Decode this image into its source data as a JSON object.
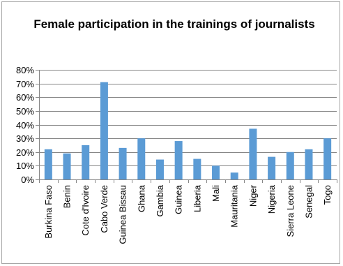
{
  "chart_data": {
    "type": "bar",
    "title": "Female participation in the trainings of journalists",
    "categories": [
      "Burkina Faso",
      "Benin",
      "Cote d'Ivoire",
      "Cabo Verde",
      "Guinea Bissau",
      "Ghana",
      "Gambia",
      "Guinea",
      "Liberia",
      "Mali",
      "Mauritania",
      "Niger",
      "Nigeria",
      "Sierra Leone",
      "Senegal",
      "Togo"
    ],
    "series": [
      {
        "values": [
          0.22,
          0.19,
          0.25,
          0.71,
          0.23,
          0.3,
          0.145,
          0.28,
          0.15,
          0.1,
          0.05,
          0.37,
          0.165,
          0.2,
          0.22,
          0.3
        ]
      }
    ],
    "ylim": [
      0,
      0.8
    ],
    "yticks": [
      0,
      0.1,
      0.2,
      0.3,
      0.4,
      0.5,
      0.6,
      0.7,
      0.8
    ],
    "ytick_labels": [
      "0%",
      "10%",
      "20%",
      "30%",
      "40%",
      "50%",
      "60%",
      "70%",
      "80%"
    ],
    "grid": true,
    "legend": "none",
    "bar_color": "#5b9bd5"
  }
}
